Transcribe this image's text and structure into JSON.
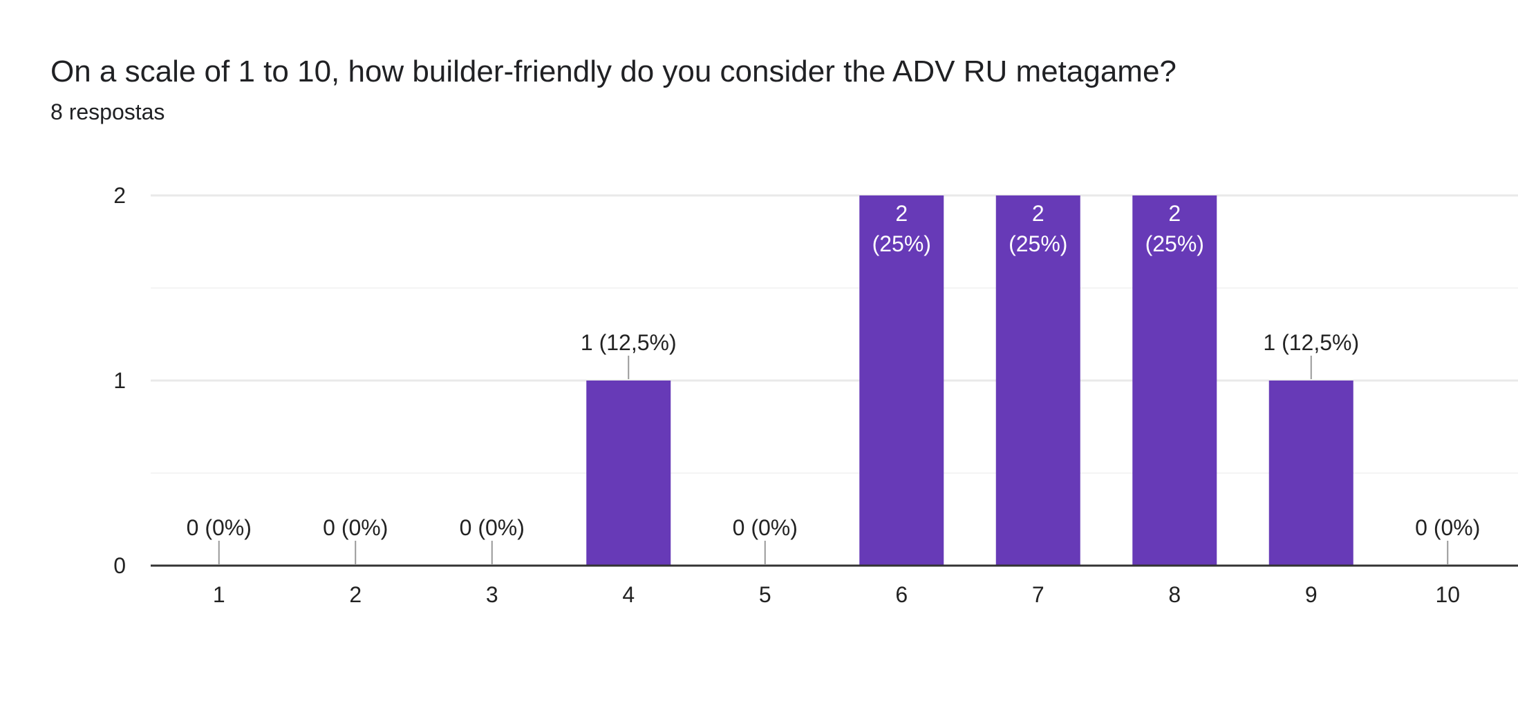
{
  "header": {
    "title": "On a scale of 1 to 10, how builder-friendly do you consider the ADV RU metagame?",
    "response_count": "8 respostas"
  },
  "chart_data": {
    "type": "bar",
    "categories": [
      "1",
      "2",
      "3",
      "4",
      "5",
      "6",
      "7",
      "8",
      "9",
      "10"
    ],
    "values": [
      0,
      0,
      0,
      1,
      0,
      2,
      2,
      2,
      1,
      0
    ],
    "data_labels": [
      "0 (0%)",
      "0 (0%)",
      "0 (0%)",
      "1 (12,5%)",
      "0 (0%)",
      "2\n(25%)",
      "2\n(25%)",
      "2\n(25%)",
      "1 (12,5%)",
      "0 (0%)"
    ],
    "y_ticks": [
      "0",
      "1",
      "2"
    ],
    "ylim": [
      0,
      2
    ],
    "grid": true,
    "bar_color": "#673ab7"
  }
}
